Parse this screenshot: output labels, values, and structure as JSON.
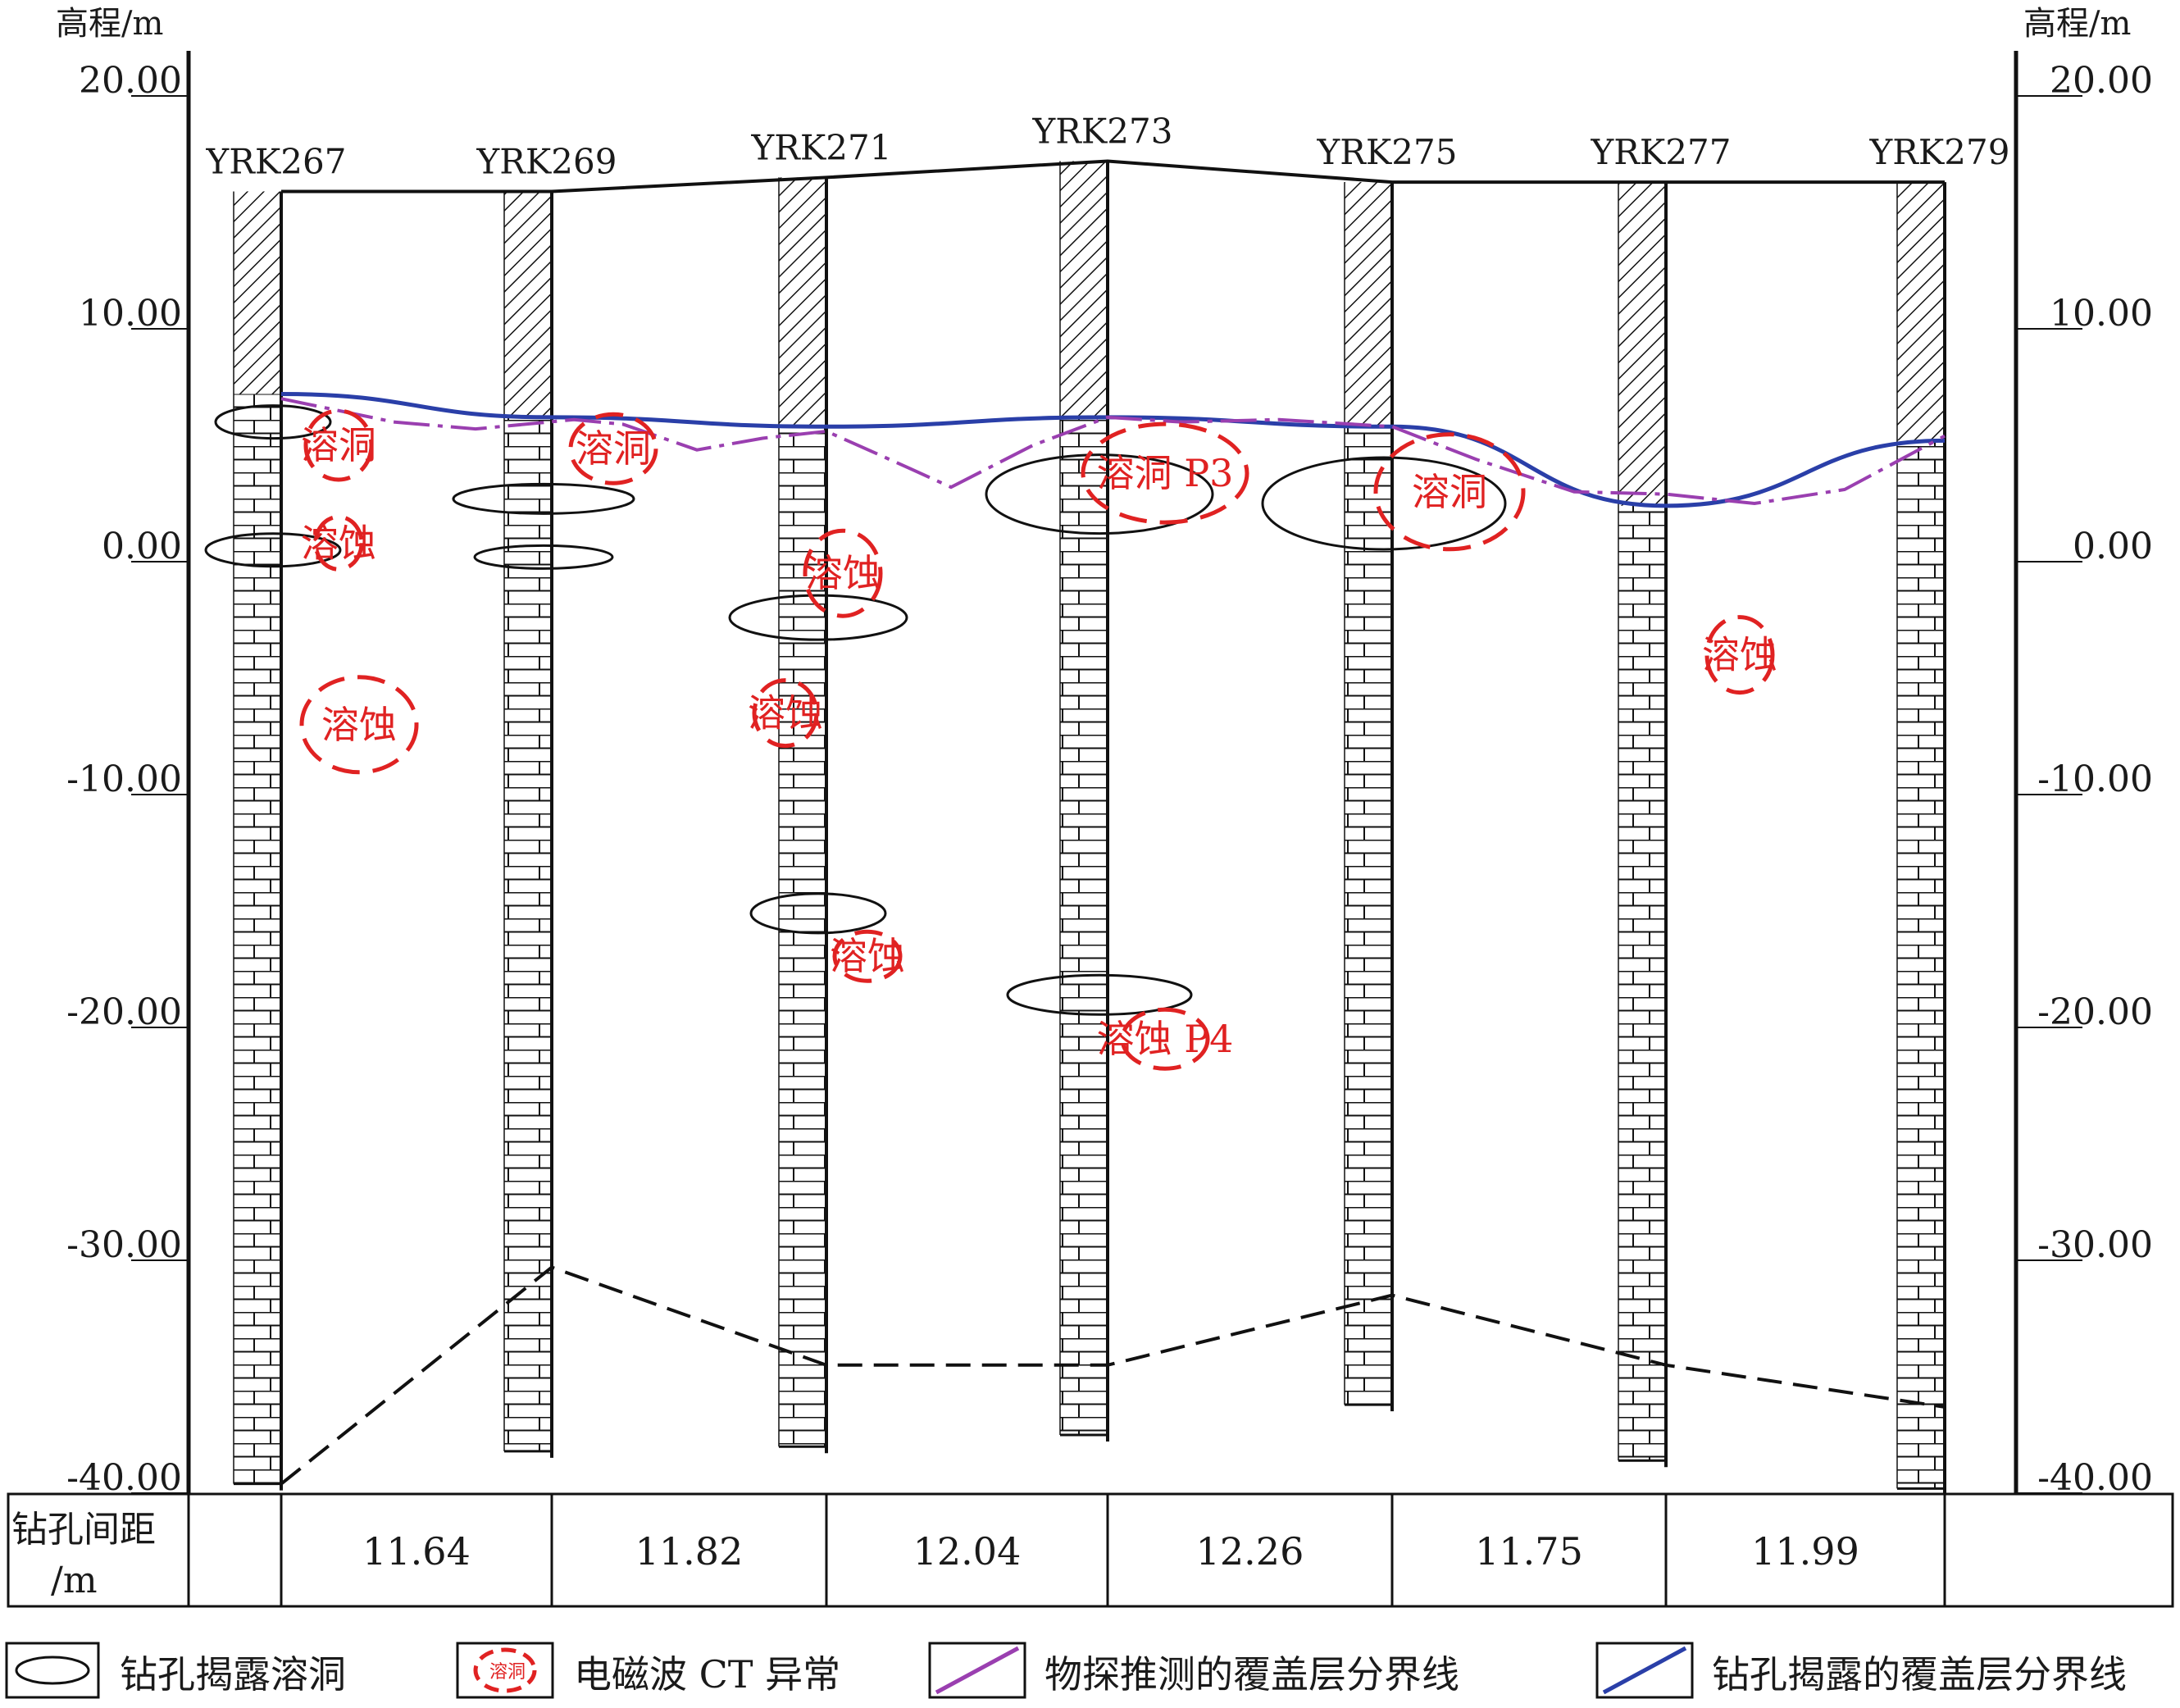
{
  "axis": {
    "left_unit": "高程/m",
    "right_unit": "高程/m",
    "ticks": [
      {
        "value": 20,
        "label": "20.00"
      },
      {
        "value": 10,
        "label": "10.00"
      },
      {
        "value": 0,
        "label": "0.00"
      },
      {
        "value": -10,
        "label": "-10.00"
      },
      {
        "value": -20,
        "label": "-20.00"
      },
      {
        "value": -30,
        "label": "-30.00"
      },
      {
        "value": -40,
        "label": "-40.00"
      }
    ]
  },
  "boreholes": [
    {
      "id": "YRK267",
      "top": 15.9,
      "bottom": -39.6,
      "overburden_bottom": 7.2
    },
    {
      "id": "YRK269",
      "top": 15.9,
      "bottom": -38.2,
      "overburden_bottom": 6.2
    },
    {
      "id": "YRK271",
      "top": 16.5,
      "bottom": -38.0,
      "overburden_bottom": 5.8
    },
    {
      "id": "YRK273",
      "top": 17.2,
      "bottom": -37.5,
      "overburden_bottom": 6.2
    },
    {
      "id": "YRK275",
      "top": 16.3,
      "bottom": -36.2,
      "overburden_bottom": 5.8
    },
    {
      "id": "YRK277",
      "top": 16.3,
      "bottom": -38.6,
      "overburden_bottom": 2.4
    },
    {
      "id": "YRK279",
      "top": 16.3,
      "bottom": -39.8,
      "overburden_bottom": 5.2
    }
  ],
  "spacing": {
    "label": "钻孔间距",
    "unit": "/m",
    "values": [
      "11.64",
      "11.82",
      "12.04",
      "12.26",
      "11.75",
      "11.99"
    ]
  },
  "cavities_drill": [
    {
      "hole": 0,
      "elev": 6.0
    },
    {
      "hole": 0,
      "elev": 0.5
    },
    {
      "hole": 1,
      "elev": 2.7
    },
    {
      "hole": 1,
      "elev": 0.2
    },
    {
      "hole": 2,
      "elev": -2.4
    },
    {
      "hole": 2,
      "elev": -15.1
    },
    {
      "hole": 3,
      "elev": 2.9
    },
    {
      "hole": 3,
      "elev": -18.6
    },
    {
      "hole": 4,
      "elev": 2.5
    }
  ],
  "anomalies": [
    {
      "text": "溶洞",
      "near_hole": 0,
      "elev": 5.0
    },
    {
      "text": "溶蚀",
      "near_hole": 0,
      "elev": 0.8
    },
    {
      "text": "溶蚀",
      "near_hole": 0,
      "elev": -7.0
    },
    {
      "text": "溶洞",
      "near_hole": 1,
      "elev": 4.5
    },
    {
      "text": "溶蚀",
      "near_hole": 2,
      "elev": -0.5
    },
    {
      "text": "溶蚀",
      "near_hole": 2,
      "elev": -6.5
    },
    {
      "text": "溶蚀",
      "near_hole": 2,
      "elev": -18.0
    },
    {
      "text": "溶洞 P3",
      "near_hole": 3,
      "elev": 3.8
    },
    {
      "text": "溶蚀 P4",
      "near_hole": 3,
      "elev": -20.5
    },
    {
      "text": "溶洞",
      "near_hole": 4,
      "elev": 3.0
    },
    {
      "text": "溶蚀",
      "near_hole": 5,
      "elev": -4.0
    }
  ],
  "bedrock_line": [
    -39.6,
    -30.3,
    -34.5,
    -34.5,
    -31.5,
    -34.5,
    -36.3
  ],
  "legend": [
    {
      "key": "drill-cavity",
      "label": "钻孔揭露溶洞"
    },
    {
      "key": "ct-anomaly",
      "label": "电磁波 CT 异常",
      "symbol_text": "溶洞"
    },
    {
      "key": "geophysical-line",
      "label": "物探推测的覆盖层分界线",
      "color": "#9a3fb0"
    },
    {
      "key": "drill-line",
      "label": "钻孔揭露的覆盖层分界线",
      "color": "#2a3fa8"
    }
  ],
  "colors": {
    "geophysical": "#9a3fb0",
    "drill": "#2a3fa8",
    "ct": "#e02222"
  }
}
